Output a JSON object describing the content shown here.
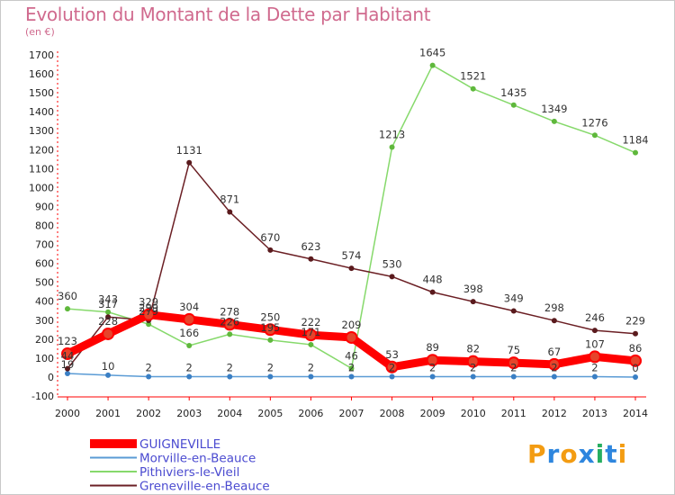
{
  "title": "Evolution du Montant de la Dette par Habitant",
  "subtitle": "(en €)",
  "logo": "Proxiti",
  "chart_data": {
    "type": "line",
    "x": [
      "2000",
      "2001",
      "2002",
      "2003",
      "2004",
      "2005",
      "2006",
      "2007",
      "2008",
      "2009",
      "2010",
      "2011",
      "2012",
      "2013",
      "2014"
    ],
    "ylim": [
      -100,
      1700
    ],
    "yticks": [
      -100,
      0,
      100,
      200,
      300,
      400,
      500,
      600,
      700,
      800,
      900,
      1000,
      1100,
      1200,
      1300,
      1400,
      1500,
      1600,
      1700
    ],
    "grid": false,
    "legend": "bottom-left",
    "series": [
      {
        "name": "GUIGNEVILLE",
        "color": "#ff0000",
        "values": [
          123,
          228,
          329,
          304,
          278,
          250,
          222,
          209,
          53,
          89,
          82,
          75,
          67,
          107,
          86
        ]
      },
      {
        "name": "Morville-en-Beauce",
        "color": "#5a9bd5",
        "values": [
          19,
          10,
          2,
          2,
          2,
          2,
          2,
          2,
          2,
          2,
          2,
          2,
          2,
          2,
          0
        ]
      },
      {
        "name": "Pithiviers-le-Vieil",
        "color": "#86d96b",
        "values": [
          360,
          343,
          279,
          166,
          226,
          195,
          171,
          46,
          1213,
          1645,
          1521,
          1435,
          1349,
          1276,
          1184
        ]
      },
      {
        "name": "Greneville-en-Beauce",
        "color": "#6b1f24",
        "values": [
          44,
          317,
          299,
          1131,
          871,
          670,
          623,
          574,
          530,
          448,
          398,
          349,
          298,
          246,
          229
        ]
      }
    ]
  }
}
